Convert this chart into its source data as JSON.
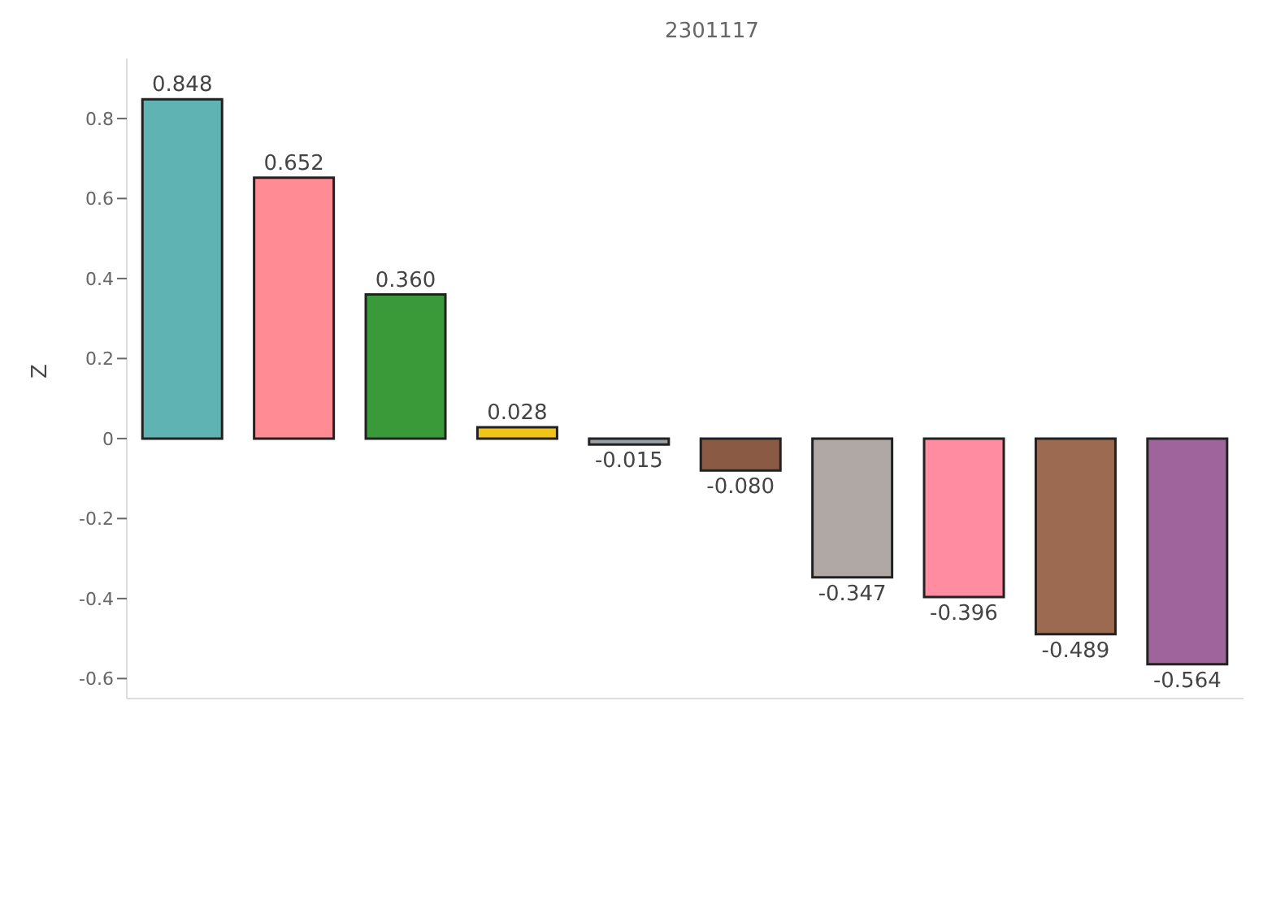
{
  "chart_data": {
    "type": "bar",
    "title": "2301117",
    "ylabel": "Z",
    "categories": [
      null,
      null,
      null,
      null,
      null,
      null,
      null,
      null,
      null,
      null
    ],
    "values": [
      0.848,
      0.652,
      0.36,
      0.028,
      -0.015,
      -0.08,
      -0.347,
      -0.396,
      -0.489,
      -0.564
    ],
    "colors": [
      "#5fb3b3",
      "#ff8c94",
      "#3a9a3a",
      "#f0c419",
      "#9aa0a6",
      "#8b5a45",
      "#b0a8a4",
      "#ff8ca0",
      "#9b6a50",
      "#a0649c"
    ],
    "value_labels": [
      "0.848",
      "0.652",
      "0.360",
      "0.028",
      "-0.015",
      "-0.080",
      "-0.347",
      "-0.396",
      "-0.489",
      "-0.564"
    ],
    "ylim": [
      -0.65,
      0.95
    ],
    "yticks": [
      -0.6,
      -0.4,
      -0.2,
      0,
      0.2,
      0.4,
      0.6,
      0.8
    ]
  }
}
